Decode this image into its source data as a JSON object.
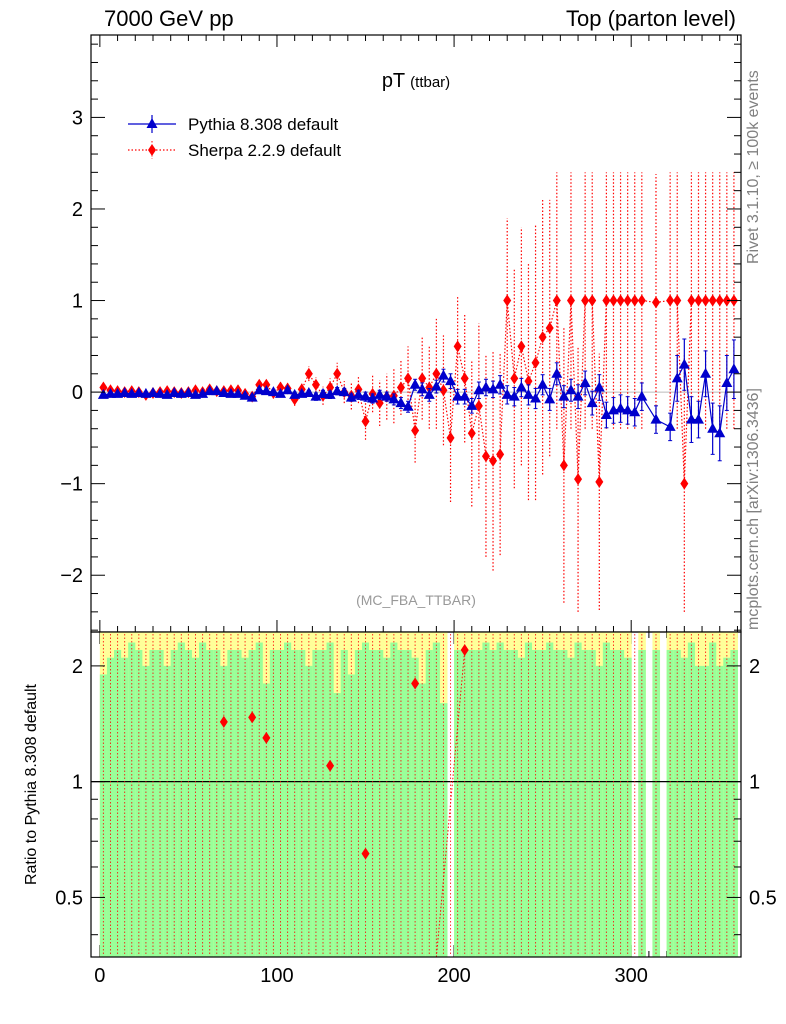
{
  "header": {
    "left": "7000 GeV pp",
    "right": "Top (parton level)"
  },
  "side_labels": {
    "rivet": "Rivet 3.1.10, ≥ 100k events",
    "mcplots": "mcplots.cern.ch [arXiv:1306.3436]"
  },
  "colors": {
    "pythia": "#0000cc",
    "sherpa": "#ff0000",
    "band_green": "#99ff99",
    "band_yellow": "#ffff99"
  },
  "chart_data": [
    {
      "type": "line",
      "title": "pT",
      "title_sub": "(ttbar)",
      "watermark": "(MC_FBA_TTBAR)",
      "xlabel": "",
      "ylabel": "",
      "xlim": [
        -5,
        362
      ],
      "ylim": [
        -2.62,
        3.9
      ],
      "xticks": [
        0,
        100,
        200,
        300
      ],
      "yticks": [
        -2,
        -1,
        0,
        1,
        2,
        3
      ],
      "ytick_labels": [
        "−2",
        "−1",
        "0",
        "1",
        "2",
        "3"
      ],
      "legend_position": "top-left",
      "series": [
        {
          "name": "Pythia 8.308 default",
          "marker": "triangle",
          "line": "solid",
          "x": [
            2,
            6,
            10,
            14,
            18,
            22,
            26,
            30,
            34,
            38,
            42,
            46,
            50,
            54,
            58,
            62,
            66,
            70,
            74,
            78,
            82,
            86,
            90,
            94,
            98,
            102,
            106,
            110,
            114,
            118,
            122,
            126,
            130,
            134,
            138,
            142,
            146,
            150,
            154,
            158,
            162,
            166,
            170,
            174,
            178,
            182,
            186,
            190,
            194,
            198,
            202,
            206,
            210,
            214,
            218,
            222,
            226,
            230,
            234,
            238,
            242,
            246,
            250,
            254,
            258,
            262,
            266,
            270,
            274,
            278,
            282,
            286,
            290,
            294,
            298,
            302,
            306,
            314,
            322,
            326,
            330,
            334,
            338,
            342,
            346,
            350,
            354,
            358
          ],
          "y": [
            -0.03,
            -0.02,
            -0.02,
            -0.01,
            -0.02,
            -0.01,
            -0.02,
            -0.01,
            -0.02,
            -0.03,
            -0.01,
            -0.02,
            -0.01,
            -0.03,
            -0.02,
            0.01,
            0.01,
            -0.01,
            -0.02,
            -0.02,
            -0.04,
            -0.06,
            0.02,
            0.01,
            0.0,
            -0.02,
            0.02,
            -0.03,
            -0.02,
            -0.01,
            -0.05,
            -0.02,
            -0.03,
            0.01,
            0.0,
            -0.06,
            -0.03,
            -0.05,
            -0.07,
            -0.03,
            -0.05,
            -0.08,
            -0.12,
            -0.16,
            0.08,
            0.03,
            -0.03,
            0.06,
            0.18,
            0.12,
            -0.05,
            -0.05,
            -0.15,
            0.02,
            0.05,
            0.03,
            0.08,
            -0.03,
            -0.05,
            0.05,
            -0.03,
            -0.07,
            0.08,
            -0.08,
            0.2,
            -0.05,
            0.02,
            -0.05,
            0.1,
            -0.12,
            0.05,
            -0.25,
            -0.2,
            -0.18,
            -0.2,
            -0.22,
            -0.05,
            -0.3,
            -0.38,
            0.15,
            0.3,
            -0.3,
            -0.3,
            0.2,
            -0.4,
            -0.45,
            0.1,
            0.25
          ],
          "err": [
            0.02,
            0.02,
            0.02,
            0.02,
            0.02,
            0.02,
            0.02,
            0.02,
            0.02,
            0.02,
            0.02,
            0.02,
            0.02,
            0.02,
            0.02,
            0.02,
            0.02,
            0.02,
            0.02,
            0.02,
            0.02,
            0.03,
            0.03,
            0.03,
            0.03,
            0.03,
            0.03,
            0.03,
            0.03,
            0.03,
            0.04,
            0.04,
            0.04,
            0.04,
            0.04,
            0.04,
            0.05,
            0.05,
            0.05,
            0.05,
            0.05,
            0.06,
            0.06,
            0.06,
            0.06,
            0.07,
            0.07,
            0.07,
            0.07,
            0.08,
            0.08,
            0.08,
            0.08,
            0.09,
            0.09,
            0.09,
            0.1,
            0.1,
            0.1,
            0.1,
            0.11,
            0.11,
            0.11,
            0.12,
            0.12,
            0.12,
            0.12,
            0.13,
            0.13,
            0.13,
            0.14,
            0.14,
            0.14,
            0.15,
            0.15,
            0.15,
            0.15,
            0.15,
            0.15,
            0.25,
            0.28,
            0.25,
            0.2,
            0.25,
            0.28,
            0.3,
            0.3,
            0.32
          ]
        },
        {
          "name": "Sherpa 2.2.9 default",
          "marker": "diamond",
          "line": "dotted",
          "x": [
            2,
            6,
            10,
            14,
            18,
            22,
            26,
            30,
            34,
            38,
            42,
            46,
            50,
            54,
            58,
            62,
            66,
            70,
            74,
            78,
            82,
            86,
            90,
            94,
            98,
            102,
            106,
            110,
            114,
            118,
            122,
            126,
            130,
            134,
            138,
            142,
            146,
            150,
            154,
            158,
            162,
            166,
            170,
            174,
            178,
            182,
            186,
            190,
            194,
            198,
            202,
            206,
            210,
            214,
            218,
            222,
            226,
            230,
            234,
            238,
            242,
            246,
            250,
            254,
            258,
            262,
            266,
            270,
            274,
            278,
            282,
            286,
            290,
            294,
            298,
            302,
            306,
            314,
            322,
            326,
            330,
            334,
            338,
            342,
            346,
            350,
            354,
            358
          ],
          "y": [
            0.05,
            0.02,
            0.01,
            0.0,
            0.01,
            0.0,
            -0.03,
            -0.01,
            0.0,
            0.01,
            0.0,
            -0.01,
            0.0,
            0.02,
            0.0,
            0.03,
            0.01,
            0.01,
            0.02,
            0.02,
            -0.02,
            -0.05,
            0.08,
            0.08,
            -0.01,
            0.05,
            0.04,
            -0.08,
            0.03,
            0.2,
            0.08,
            -0.04,
            0.05,
            0.2,
            0.0,
            -0.04,
            0.03,
            -0.32,
            -0.02,
            -0.12,
            -0.05,
            -0.04,
            0.05,
            0.15,
            -0.42,
            0.15,
            0.05,
            0.2,
            0.02,
            -0.5,
            0.5,
            0.15,
            -0.45,
            -0.15,
            -0.7,
            -0.75,
            -0.68,
            1.0,
            0.15,
            0.5,
            0.12,
            0.32,
            0.6,
            0.7,
            1.0,
            -0.8,
            1.0,
            -0.95,
            1.0,
            1.0,
            -0.98,
            1.0,
            1.0,
            1.0,
            1.0,
            1.0,
            1.0,
            0.98,
            1.0,
            1.0,
            -1.0,
            1.0,
            1.0,
            1.0,
            1.0,
            1.0,
            1.0,
            1.0
          ],
          "err": [
            0.03,
            0.03,
            0.03,
            0.03,
            0.03,
            0.03,
            0.03,
            0.03,
            0.03,
            0.03,
            0.03,
            0.03,
            0.03,
            0.03,
            0.03,
            0.03,
            0.04,
            0.04,
            0.04,
            0.04,
            0.05,
            0.05,
            0.05,
            0.05,
            0.06,
            0.06,
            0.06,
            0.07,
            0.07,
            0.08,
            0.08,
            0.1,
            0.1,
            0.12,
            0.12,
            0.15,
            0.15,
            0.2,
            0.2,
            0.25,
            0.25,
            0.3,
            0.3,
            0.35,
            0.35,
            0.45,
            0.45,
            0.6,
            0.6,
            0.7,
            0.55,
            0.7,
            0.8,
            0.9,
            1.1,
            1.2,
            1.1,
            0.9,
            1.2,
            1.3,
            1.3,
            1.5,
            1.5,
            1.4,
            1.4,
            1.5,
            1.4,
            1.45,
            1.4,
            1.4,
            1.4,
            1.4,
            1.4,
            1.4,
            1.4,
            1.4,
            1.4,
            1.4,
            1.4,
            1.4,
            1.4,
            1.4,
            1.4,
            1.4,
            1.4,
            1.4,
            1.4,
            1.4
          ]
        }
      ]
    },
    {
      "type": "line",
      "title": "",
      "xlabel": "",
      "ylabel": "Ratio to Pythia 8.308 default",
      "xlim": [
        -5,
        362
      ],
      "ylim": [
        0.35,
        2.45
      ],
      "yscale": "log",
      "xticks": [
        0,
        100,
        200,
        300
      ],
      "xtick_labels": [
        "0",
        "100",
        "200",
        "300"
      ],
      "yticks": [
        0.5,
        1,
        2
      ],
      "ytick_labels": [
        "0.5",
        "1",
        "2"
      ],
      "reference_line": 1,
      "bands": {
        "bin_width": 4,
        "x_start": 0,
        "green_lo": 0.35,
        "green_hi": [
          1.9,
          2.1,
          2.2,
          2.1,
          2.3,
          2.2,
          2.0,
          2.2,
          2.2,
          2.0,
          2.2,
          2.3,
          2.2,
          2.1,
          2.3,
          2.2,
          2.2,
          2.0,
          2.2,
          2.2,
          2.1,
          2.2,
          2.3,
          1.8,
          2.2,
          2.2,
          2.3,
          2.2,
          2.2,
          2.0,
          2.2,
          2.2,
          2.3,
          1.7,
          2.2,
          1.9,
          2.2,
          2.3,
          2.2,
          2.2,
          2.1,
          2.3,
          2.2,
          2.2,
          2.1,
          1.8,
          2.2,
          2.3,
          1.6,
          2.3,
          2.2,
          2.2,
          2.2,
          2.2,
          2.3,
          2.2,
          2.3,
          2.2,
          2.2,
          2.1,
          2.3,
          2.2,
          2.2,
          2.3,
          2.2,
          2.2,
          2.1,
          2.3,
          2.2,
          2.2,
          2.0,
          2.3,
          2.2,
          2.2,
          2.1,
          2.0,
          2.2,
          2.2,
          2.2,
          2.3,
          2.2,
          2.2,
          2.1,
          2.3,
          2.0,
          2.0,
          2.3,
          2.0,
          2.1,
          2.2
        ],
        "yellow_hi": 2.45,
        "gaps": [
          [
            196,
            200
          ],
          [
            300,
            304
          ],
          [
            308,
            310
          ],
          [
            314,
            318
          ]
        ]
      },
      "series": [
        {
          "name": "Sherpa 2.2.9 default",
          "marker": "diamond",
          "line": "dotted",
          "x": [
            70,
            86,
            94,
            130,
            150,
            178,
            206
          ],
          "y": [
            1.43,
            1.47,
            1.3,
            1.1,
            0.65,
            1.8,
            2.2
          ]
        }
      ]
    }
  ]
}
